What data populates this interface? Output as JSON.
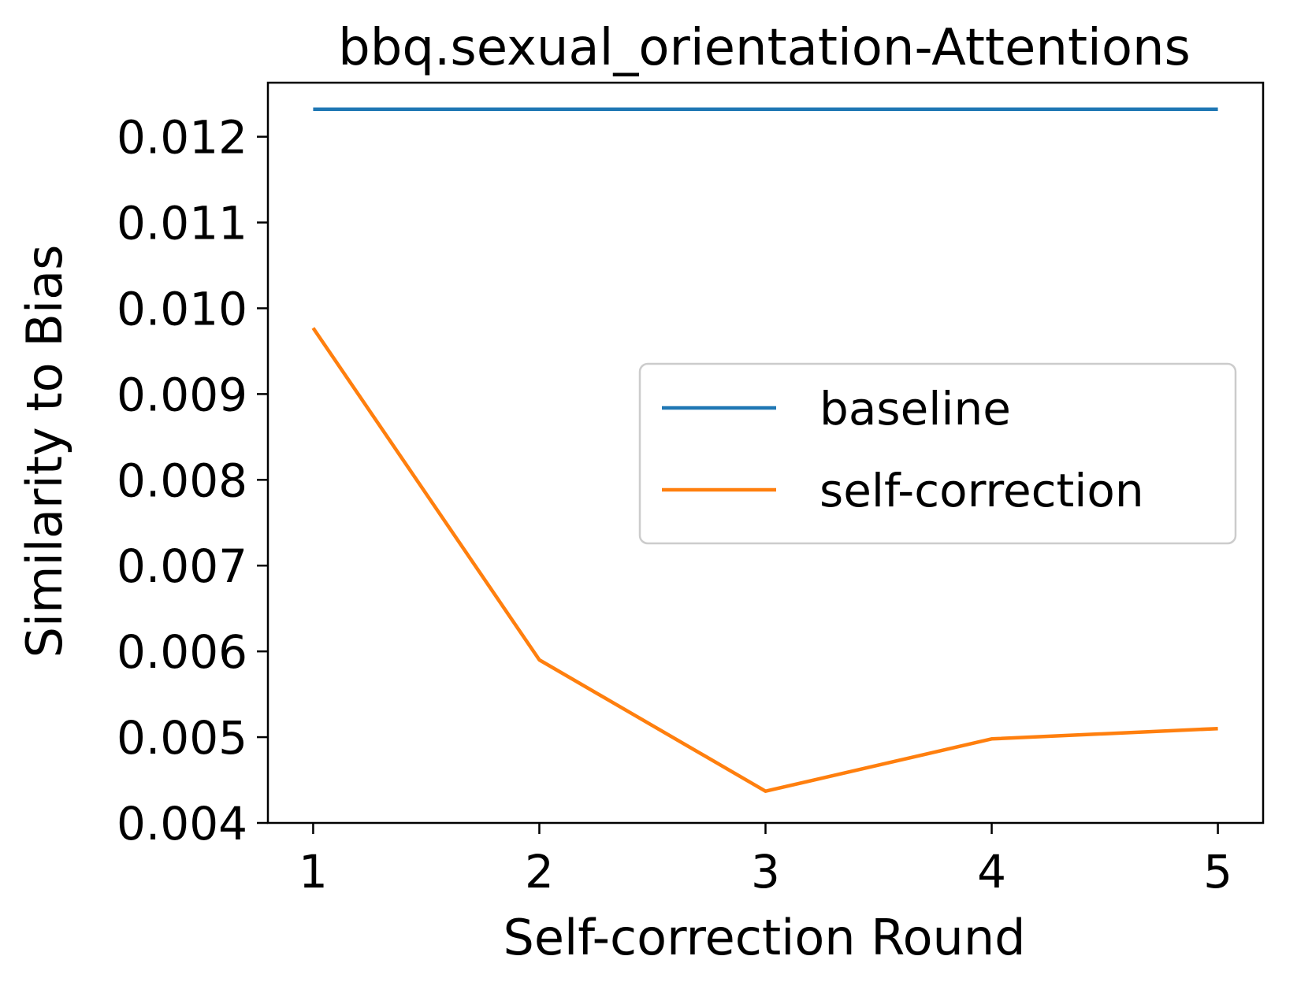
{
  "chart_data": {
    "type": "line",
    "title": "bbq.sexual_orientation-Attentions",
    "xlabel": "Self-correction Round",
    "ylabel": "Similarity to Bias",
    "x": [
      1,
      2,
      3,
      4,
      5
    ],
    "xlim": [
      0.8,
      5.2
    ],
    "ylim": [
      0.004,
      0.01263
    ],
    "xticks": [
      1,
      2,
      3,
      4,
      5
    ],
    "xtick_labels": [
      "1",
      "2",
      "3",
      "4",
      "5"
    ],
    "yticks": [
      0.004,
      0.005,
      0.006,
      0.007,
      0.008,
      0.009,
      0.01,
      0.011,
      0.012
    ],
    "ytick_labels": [
      "0.004",
      "0.005",
      "0.006",
      "0.007",
      "0.008",
      "0.009",
      "0.010",
      "0.011",
      "0.012"
    ],
    "grid": false,
    "legend_position": "center-right",
    "series": [
      {
        "name": "baseline",
        "color": "#1f77b4",
        "values": [
          0.01232,
          0.01232,
          0.01232,
          0.01232,
          0.01232
        ]
      },
      {
        "name": "self-correction",
        "color": "#ff7f0e",
        "values": [
          0.00977,
          0.0059,
          0.00437,
          0.00498,
          0.0051
        ]
      }
    ]
  }
}
